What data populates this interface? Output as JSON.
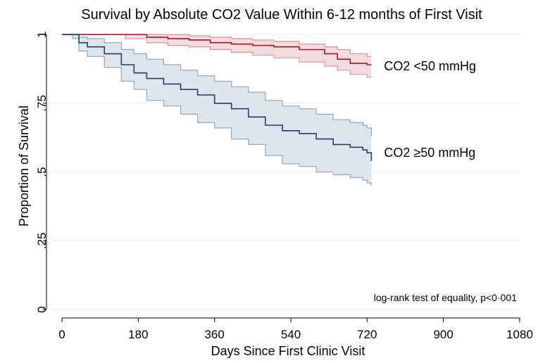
{
  "chart_data": {
    "type": "line",
    "title": "Survival by Absolute CO2 Value Within 6-12 months of First Visit",
    "xlabel": "Days Since First Clinic Visit",
    "ylabel": "Proportion of Survival",
    "xlim": [
      0,
      1080
    ],
    "ylim": [
      0,
      1
    ],
    "x_ticks": [
      {
        "value": 0,
        "label": "0"
      },
      {
        "value": 180,
        "label": "180"
      },
      {
        "value": 360,
        "label": "360"
      },
      {
        "value": 540,
        "label": "540"
      },
      {
        "value": 720,
        "label": "720"
      },
      {
        "value": 900,
        "label": "900"
      },
      {
        "value": 1080,
        "label": "1080"
      }
    ],
    "y_ticks": [
      {
        "value": 0,
        "label": "0"
      },
      {
        "value": 0.25,
        "label": ".25"
      },
      {
        "value": 0.5,
        "label": ".5"
      },
      {
        "value": 0.75,
        "label": ".75"
      },
      {
        "value": 1,
        "label": "1"
      }
    ],
    "grid": "horizontal",
    "legend": "inline-labels-right",
    "annotation": "log-rank test of equality, p<0·001",
    "series": [
      {
        "name": "CO2 <50 mmHg",
        "color": "#a0162a",
        "ci_fill": "#f1d6d9",
        "ci_line": "#e48f98",
        "x": [
          0,
          150,
          200,
          250,
          300,
          350,
          400,
          450,
          500,
          560,
          620,
          650,
          680,
          720,
          730
        ],
        "y": [
          1.0,
          1.0,
          0.99,
          0.985,
          0.98,
          0.97,
          0.965,
          0.96,
          0.955,
          0.945,
          0.93,
          0.91,
          0.895,
          0.89,
          0.89
        ],
        "lower": [
          1.0,
          0.985,
          0.97,
          0.96,
          0.955,
          0.945,
          0.935,
          0.925,
          0.915,
          0.9,
          0.885,
          0.87,
          0.855,
          0.845,
          0.845
        ],
        "upper": [
          1.0,
          1.0,
          1.0,
          1.0,
          0.995,
          0.99,
          0.985,
          0.98,
          0.975,
          0.965,
          0.955,
          0.945,
          0.93,
          0.92,
          0.92
        ],
        "label_x": 760,
        "label_y": 0.885
      },
      {
        "name": "CO2 ≥50 mmHg",
        "color": "#1d3f66",
        "ci_fill": "#d9e1ea",
        "ci_line": "#8ea8c2",
        "x": [
          0,
          25,
          40,
          60,
          100,
          140,
          170,
          200,
          240,
          280,
          320,
          360,
          400,
          440,
          480,
          520,
          560,
          600,
          640,
          680,
          710,
          720,
          730
        ],
        "y": [
          1.0,
          1.0,
          0.97,
          0.955,
          0.93,
          0.89,
          0.86,
          0.84,
          0.82,
          0.8,
          0.78,
          0.75,
          0.73,
          0.7,
          0.67,
          0.65,
          0.64,
          0.62,
          0.6,
          0.59,
          0.58,
          0.57,
          0.54
        ],
        "lower": [
          1.0,
          0.985,
          0.94,
          0.92,
          0.88,
          0.83,
          0.8,
          0.76,
          0.74,
          0.71,
          0.68,
          0.66,
          0.62,
          0.6,
          0.56,
          0.53,
          0.52,
          0.5,
          0.49,
          0.48,
          0.47,
          0.46,
          0.45
        ],
        "upper": [
          1.0,
          1.0,
          0.99,
          0.985,
          0.97,
          0.945,
          0.93,
          0.91,
          0.89,
          0.87,
          0.85,
          0.83,
          0.81,
          0.79,
          0.76,
          0.74,
          0.73,
          0.71,
          0.69,
          0.68,
          0.67,
          0.66,
          0.63
        ],
        "label_x": 760,
        "label_y": 0.57
      }
    ]
  }
}
